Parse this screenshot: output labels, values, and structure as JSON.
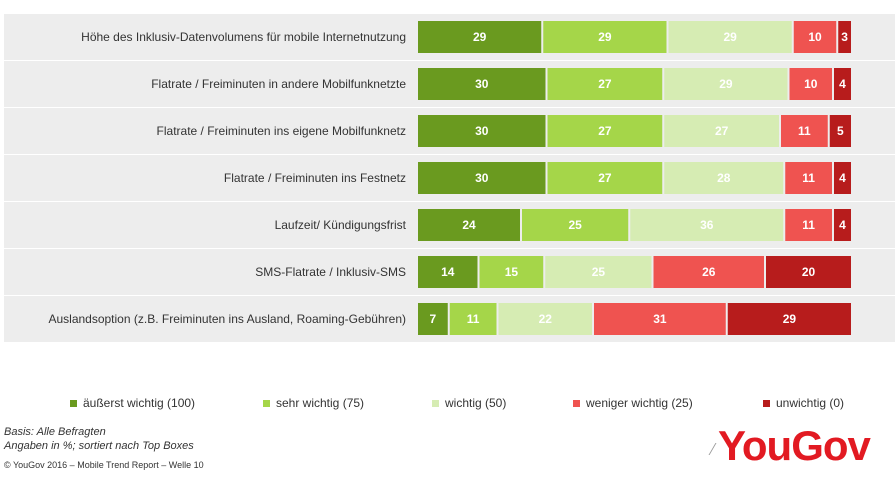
{
  "chart_data": {
    "type": "bar",
    "stacked": true,
    "orientation": "horizontal",
    "categories": [
      "Höhe des Inklusiv-Datenvolumens für mobile Internetnutzung",
      "Flatrate / Freiminuten in andere Mobilfunknetzte",
      "Flatrate / Freiminuten ins eigene Mobilfunknetz",
      "Flatrate / Freiminuten ins Festnetz",
      "Laufzeit/ Kündigungsfrist",
      "SMS-Flatrate / Inklusiv-SMS",
      "Auslandsoption (z.B. Freiminuten ins Ausland, Roaming-Gebühren)"
    ],
    "series": [
      {
        "name": "äußerst wichtig (100)",
        "color": "#6a9a1f",
        "label_color": "#ffffff",
        "values": [
          29,
          30,
          30,
          30,
          24,
          14,
          7
        ]
      },
      {
        "name": "sehr wichtig (75)",
        "color": "#a5d649",
        "label_color": "#ffffff",
        "values": [
          29,
          27,
          27,
          27,
          25,
          15,
          11
        ]
      },
      {
        "name": "wichtig (50)",
        "color": "#d6ecb3",
        "label_color": "#ffffff",
        "values": [
          29,
          29,
          27,
          28,
          36,
          25,
          22
        ]
      },
      {
        "name": "weniger wichtig (25)",
        "color": "#ef5350",
        "label_color": "#ffffff",
        "values": [
          10,
          10,
          11,
          11,
          11,
          26,
          31
        ]
      },
      {
        "name": "unwichtig (0)",
        "color": "#b71c1c",
        "label_color": "#ffffff",
        "values": [
          3,
          4,
          5,
          4,
          4,
          20,
          29
        ]
      }
    ],
    "legend_position": "bottom",
    "grid": false
  },
  "footnotes": {
    "basis": "Basis: Alle Befragten",
    "note": "Angaben in %; sortiert nach Top Boxes"
  },
  "copyright": "© YouGov 2016 – Mobile Trend Report – Welle 10",
  "logo_text": "YouGov"
}
